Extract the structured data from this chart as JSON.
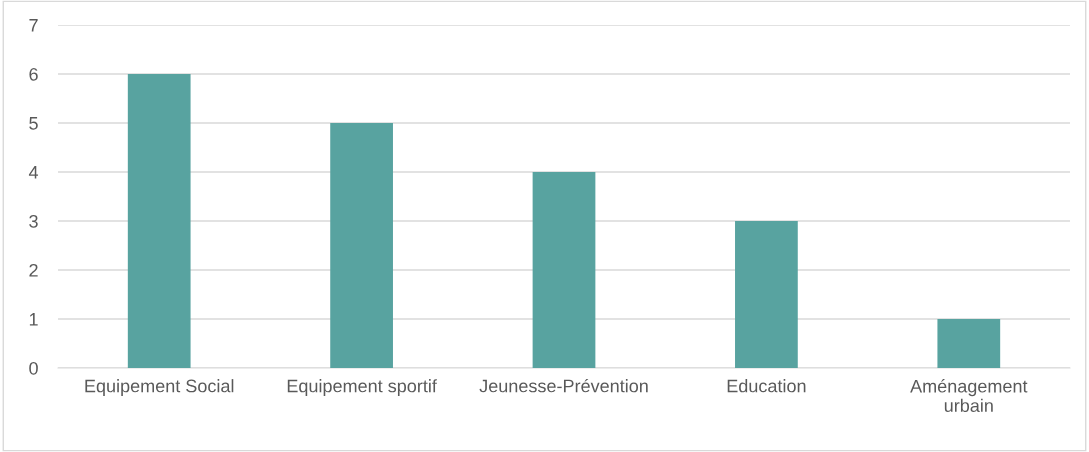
{
  "chart_data": {
    "type": "bar",
    "categories": [
      "Equipement Social",
      "Equipement sportif",
      "Jeunesse-Prévention",
      "Education",
      "Aménagement\nurbain"
    ],
    "values": [
      6,
      5,
      4,
      3,
      1
    ],
    "color": "#58a3a0",
    "ylim": [
      0,
      7
    ],
    "yticks": [
      0,
      1,
      2,
      3,
      4,
      5,
      6,
      7
    ],
    "grid": "y"
  }
}
